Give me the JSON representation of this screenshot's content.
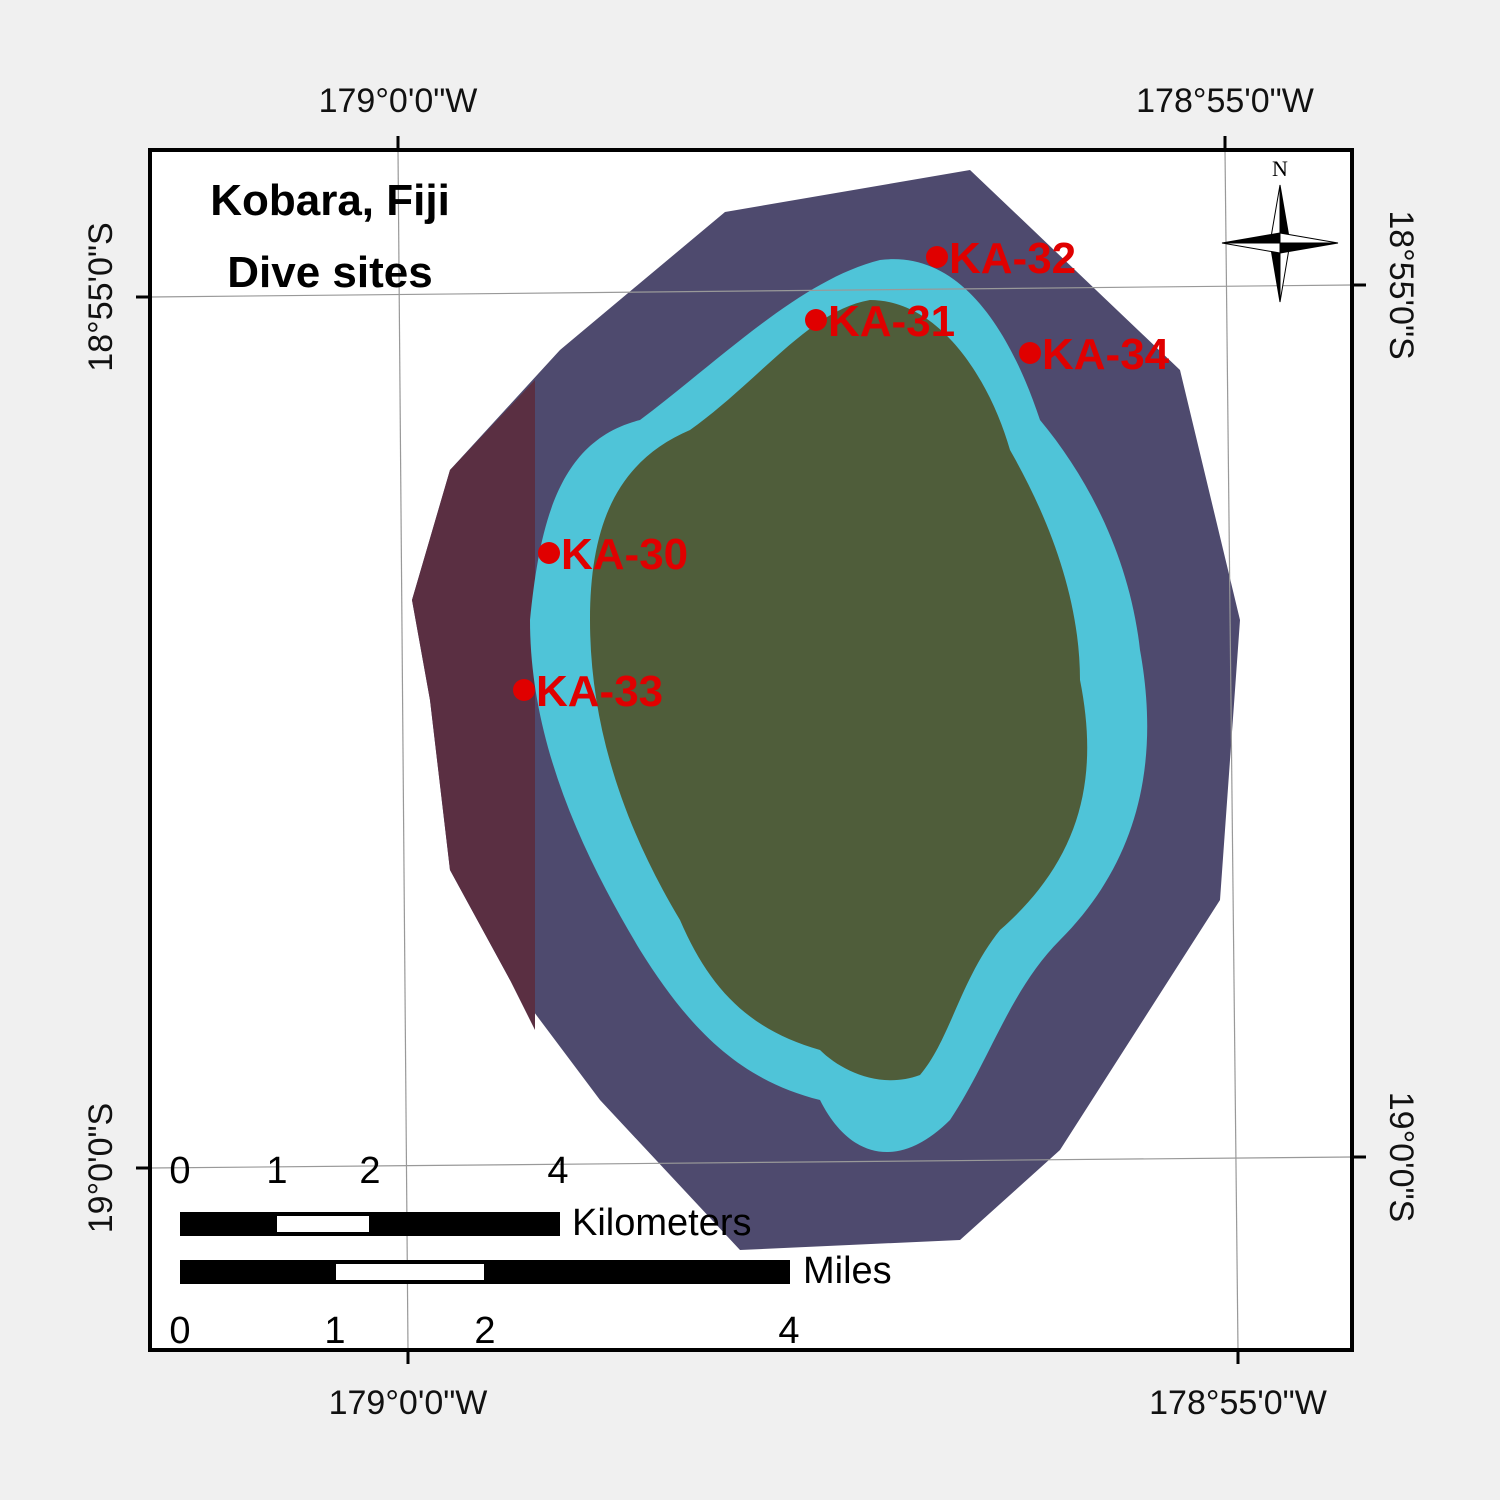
{
  "title": [
    "Kobara, Fiji",
    "Dive sites"
  ],
  "graticule": {
    "top": [
      "179°0'0\"W",
      "178°55'0\"W"
    ],
    "bottom": [
      "179°0'0\"W",
      "178°55'0\"W"
    ],
    "left": [
      "18°55'0\"S",
      "19°0'0\"S"
    ],
    "right": [
      "18°55'0\"S",
      "19°0'0\"S"
    ]
  },
  "north_arrow": "N",
  "sites": [
    "KA-32",
    "KA-31",
    "KA-34",
    "KA-30",
    "KA-33"
  ],
  "scale_bars": [
    {
      "unit": "Kilometers",
      "ticks": [
        0,
        1,
        2,
        4
      ]
    },
    {
      "unit": "Miles",
      "ticks": [
        0,
        1,
        2,
        4
      ]
    }
  ]
}
